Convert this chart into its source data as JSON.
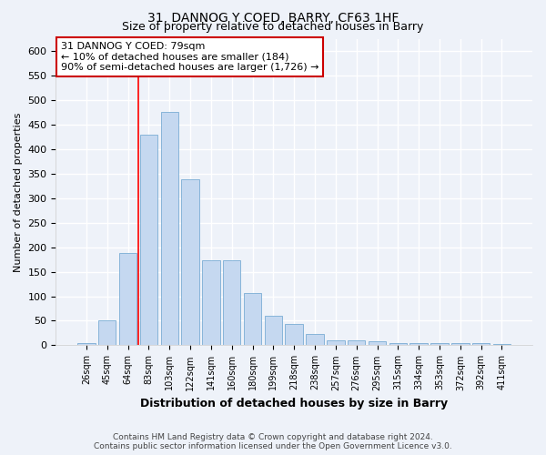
{
  "title": "31, DANNOG Y COED, BARRY, CF63 1HF",
  "subtitle": "Size of property relative to detached houses in Barry",
  "xlabel": "Distribution of detached houses by size in Barry",
  "ylabel": "Number of detached properties",
  "bar_color": "#c5d8f0",
  "bar_edge_color": "#7aadd4",
  "categories": [
    "26sqm",
    "45sqm",
    "64sqm",
    "83sqm",
    "103sqm",
    "122sqm",
    "141sqm",
    "160sqm",
    "180sqm",
    "199sqm",
    "218sqm",
    "238sqm",
    "257sqm",
    "276sqm",
    "295sqm",
    "315sqm",
    "334sqm",
    "353sqm",
    "372sqm",
    "392sqm",
    "411sqm"
  ],
  "values": [
    5,
    50,
    188,
    430,
    476,
    338,
    173,
    173,
    107,
    60,
    44,
    23,
    10,
    10,
    8,
    4,
    4,
    4,
    4,
    4,
    3
  ],
  "ylim": [
    0,
    625
  ],
  "yticks": [
    0,
    50,
    100,
    150,
    200,
    250,
    300,
    350,
    400,
    450,
    500,
    550,
    600
  ],
  "red_line_index": 3,
  "annotation_text": "31 DANNOG Y COED: 79sqm\n← 10% of detached houses are smaller (184)\n90% of semi-detached houses are larger (1,726) →",
  "footer": "Contains HM Land Registry data © Crown copyright and database right 2024.\nContains public sector information licensed under the Open Government Licence v3.0.",
  "bg_color": "#eef2f9",
  "grid_color": "#ffffff",
  "annotation_box_color": "#ffffff",
  "annotation_box_edge": "#cc0000",
  "title_fontsize": 10,
  "subtitle_fontsize": 9
}
